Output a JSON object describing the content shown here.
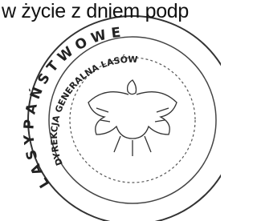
{
  "document": {
    "text_line": "w życie z dniem podp",
    "stamp": {
      "outer_text": "L A S Y   P A Ń S T W O W E",
      "inner_text": "DYREKCJA GENERALNA LASÓW"
    }
  }
}
